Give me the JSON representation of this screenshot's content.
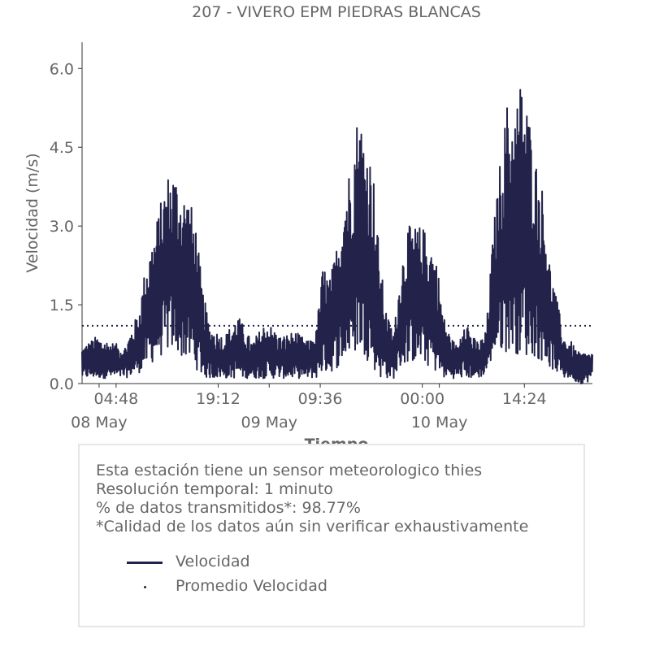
{
  "chart_data": {
    "type": "line",
    "title": "207 - VIVERO EPM PIEDRAS BLANCAS",
    "xlabel": "Tiempo",
    "ylabel": "Velocidad (m/s)",
    "ylim": [
      0,
      6.5
    ],
    "yticks": [
      "0.0",
      "1.5",
      "3.0",
      "4.5",
      "6.0"
    ],
    "ytick_values": [
      0,
      1.5,
      3.0,
      4.5,
      6.0
    ],
    "x_range_hours": [
      0,
      72
    ],
    "xticks_hours": [
      4.8,
      19.2,
      33.6,
      48.0,
      62.4
    ],
    "xticks": [
      "04:48",
      "19:12",
      "09:36",
      "00:00",
      "14:24"
    ],
    "date_labels": [
      {
        "hours": 2.4,
        "label": "08 May"
      },
      {
        "hours": 26.4,
        "label": "09 May"
      },
      {
        "hours": 50.4,
        "label": "10 May"
      }
    ],
    "minor_ticks_hours": [
      2.4,
      26.4,
      50.4
    ],
    "series": [
      {
        "name": "Velocidad",
        "color": "#22224a",
        "envelope_hours": [
          0,
          2,
          4,
          6,
          8,
          9,
          10,
          11,
          12,
          13,
          14,
          15,
          16,
          17,
          18,
          20,
          22,
          24,
          26,
          28,
          30,
          32,
          33,
          34,
          35,
          36,
          37,
          38,
          39,
          40,
          41,
          42,
          43,
          44,
          45,
          46,
          48,
          49,
          50,
          51,
          52,
          53,
          54,
          55,
          56,
          57,
          58,
          59,
          60,
          61,
          62,
          63,
          64,
          65,
          66,
          67,
          68,
          69,
          70,
          71,
          72
        ],
        "envelope_max": [
          0.7,
          0.9,
          0.8,
          0.7,
          1.4,
          2.3,
          2.8,
          3.4,
          4.0,
          4.1,
          3.7,
          3.6,
          3.1,
          1.8,
          1.1,
          0.9,
          1.3,
          0.8,
          1.2,
          0.9,
          1.0,
          0.8,
          1.0,
          2.3,
          2.0,
          2.7,
          3.7,
          4.3,
          5.3,
          4.7,
          4.2,
          2.4,
          1.3,
          1.0,
          2.3,
          3.0,
          3.0,
          2.8,
          2.4,
          1.3,
          0.9,
          0.7,
          1.4,
          0.9,
          0.8,
          1.0,
          2.9,
          4.3,
          5.4,
          5.2,
          5.9,
          5.2,
          4.3,
          3.7,
          2.3,
          1.6,
          0.9,
          0.8,
          0.6,
          0.6,
          0.6
        ],
        "envelope_min": [
          0.1,
          0.1,
          0.1,
          0.1,
          0.2,
          0.3,
          0.4,
          0.5,
          0.6,
          0.6,
          0.5,
          0.4,
          0.3,
          0.1,
          0.1,
          0.1,
          0.1,
          0.1,
          0.1,
          0.1,
          0.1,
          0.1,
          0.1,
          0.2,
          0.2,
          0.3,
          0.4,
          0.5,
          0.6,
          0.5,
          0.3,
          0.1,
          0.1,
          0.1,
          0.3,
          0.4,
          0.4,
          0.3,
          0.2,
          0.1,
          0.1,
          0.1,
          0.1,
          0.1,
          0.1,
          0.2,
          0.5,
          0.6,
          0.6,
          0.6,
          0.5,
          0.5,
          0.5,
          0.4,
          0.3,
          0.2,
          0.1,
          0.1,
          0.0,
          0.0,
          0.1
        ]
      },
      {
        "name": "Promedio Velocidad",
        "color": "#22224a",
        "constant_value": 1.1
      }
    ]
  },
  "info": {
    "line1": "Esta estación tiene un sensor meteorologico thies",
    "line2": "Resolución temporal: 1 minuto",
    "line3": "% de datos transmitidos*: 98.77%",
    "line4": "*Calidad de los datos aún sin verificar exhaustivamente"
  },
  "legend": {
    "items": [
      {
        "label": "Velocidad",
        "style": "line"
      },
      {
        "label": "Promedio Velocidad",
        "style": "dot"
      }
    ]
  }
}
